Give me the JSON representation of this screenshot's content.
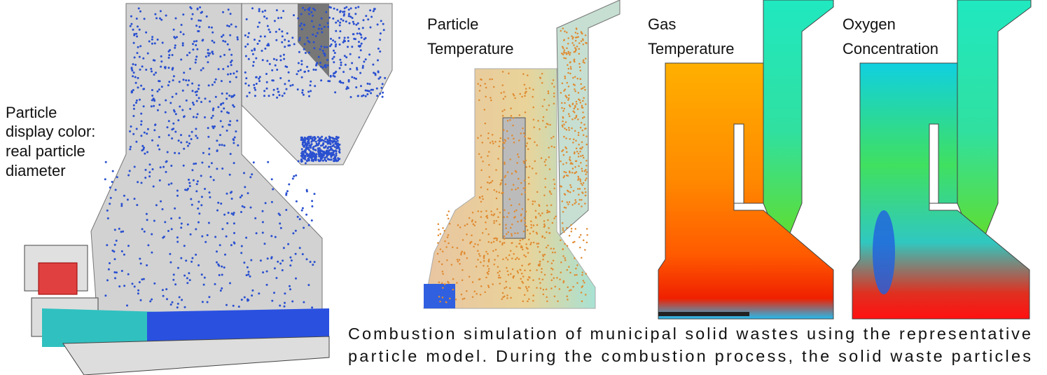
{
  "figure": {
    "left_label": [
      "Particle",
      "display color:",
      "real particle",
      "diameter"
    ],
    "panel_labels": [
      [
        "Particle",
        "Temperature"
      ],
      [
        "Gas",
        "Temperature"
      ],
      [
        "Oxygen",
        "Concentration"
      ]
    ],
    "caption_lines": [
      "Combustion simulation of municipal solid wastes using the representative",
      "particle model. During the combustion process, the solid waste particles"
    ]
  }
}
